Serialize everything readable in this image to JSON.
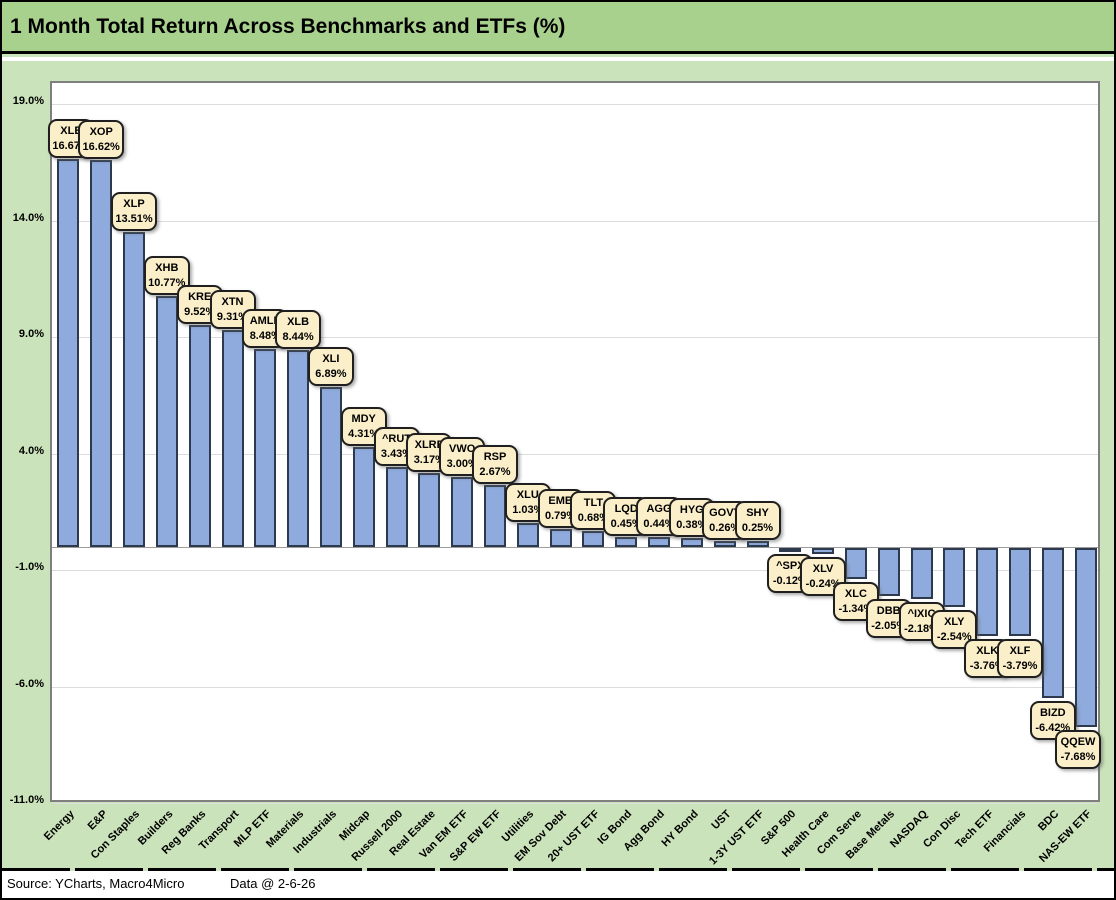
{
  "header": {
    "title": "1 Month Total Return Across Benchmarks and ETFs (%)"
  },
  "footer": {
    "source": "Source: YCharts, Macro4Micro",
    "data_date": "Data @ 2-6-26"
  },
  "chart_data": {
    "type": "bar",
    "title": "1 Month Total Return Across Benchmarks and ETFs (%)",
    "xlabel": "",
    "ylabel": "",
    "ylim": [
      -11,
      19.9
    ],
    "grid": true,
    "legend": "none",
    "y_ticks": {
      "labels": [
        "19.0%",
        "14.0%",
        "9.0%",
        "4.0%",
        "-1.0%",
        "-6.0%",
        "-11.0%"
      ],
      "values": [
        19,
        14,
        9,
        4,
        -1,
        -6,
        -11
      ]
    },
    "categories": [
      "Energy",
      "E&P",
      "Con Staples",
      "Builders",
      "Reg Banks",
      "Transport",
      "MLP ETF",
      "Materials",
      "Industrials",
      "Midcap",
      "Russell 2000",
      "Real Estate",
      "Van EM ETF",
      "S&P EW ETF",
      "Utilities",
      "EM Sov Debt",
      "20+ UST ETF",
      "IG Bond",
      "Agg Bond",
      "HY Bond",
      "UST",
      "1-3Y UST ETF",
      "S&P 500",
      "Health Care",
      "Com Serve",
      "Base Metals",
      "NASDAQ",
      "Con Disc",
      "Tech ETF",
      "Financials",
      "BDC",
      "NAS-EW ETF"
    ],
    "tickers": [
      "XLE",
      "XOP",
      "XLP",
      "XHB",
      "KRE",
      "XTN",
      "AMLP",
      "XLB",
      "XLI",
      "MDY",
      "^RUT",
      "XLRE",
      "VWO",
      "RSP",
      "XLU",
      "EMB",
      "TLT",
      "LQD",
      "AGG",
      "HYG",
      "GOVT",
      "SHY",
      "^SPX",
      "XLV",
      "XLC",
      "DBB",
      "^IXIC",
      "XLY",
      "XLK",
      "XLF",
      "BIZD",
      "QQEW"
    ],
    "series": [
      {
        "name": "1 Month Total Return",
        "values": [
          16.67,
          16.62,
          13.51,
          10.77,
          9.52,
          9.31,
          8.48,
          8.44,
          6.89,
          4.31,
          3.43,
          3.17,
          3.0,
          2.67,
          1.03,
          0.79,
          0.68,
          0.45,
          0.44,
          0.38,
          0.26,
          0.25,
          -0.12,
          -0.24,
          -1.34,
          -2.05,
          -2.18,
          -2.54,
          -3.76,
          -3.79,
          -6.42,
          -7.68
        ],
        "value_labels": [
          "16.67%",
          "16.62%",
          "13.51%",
          "10.77%",
          "9.52%",
          "9.31%",
          "8.48%",
          "8.44%",
          "6.89%",
          "4.31%",
          "3.43%",
          "3.17%",
          "3.00%",
          "2.67%",
          "1.03%",
          "0.79%",
          "0.68%",
          "0.45%",
          "0.44%",
          "0.38%",
          "0.26%",
          "0.25%",
          "-0.12%",
          "-0.24%",
          "-1.34%",
          "-2.05%",
          "-2.18%",
          "-2.54%",
          "-3.76%",
          "-3.79%",
          "-6.42%",
          "-7.68%"
        ]
      }
    ],
    "colors": {
      "background": "#CBE3BA",
      "title_band": "#A9D18E",
      "plot_background": "#FFFFFF",
      "bar_fill": "#8FAADC",
      "bar_border": "#2D3A4E",
      "callout_fill": "#FBEFC9",
      "callout_border": "#1F1F1F",
      "gridline": "#DCDCDC",
      "zero_axis": "#9C9C9C",
      "text": "#000000"
    }
  }
}
